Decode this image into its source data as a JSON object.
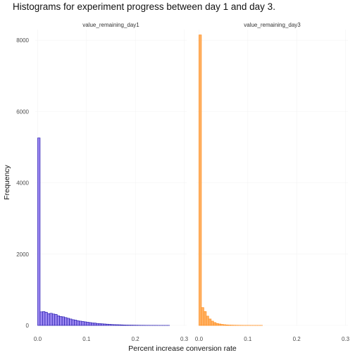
{
  "chart_data": {
    "type": "bar",
    "title": "Histograms for experiment progress between day 1 and day 3.",
    "xlabel": "Percent increase conversion rate",
    "ylabel": "Frequency",
    "xlim": [
      -0.005,
      0.305
    ],
    "ylim": [
      0,
      8300
    ],
    "x_ticks": [
      0.0,
      0.1,
      0.2,
      0.3
    ],
    "x_tick_labels": [
      "0.0",
      "0.1",
      "0.2",
      "0.3"
    ],
    "y_ticks": [
      0,
      2000,
      4000,
      6000,
      8000
    ],
    "y_tick_labels": [
      "0",
      "2000",
      "4000",
      "6000",
      "8000"
    ],
    "bin_width": 0.005,
    "grid": true,
    "facets": [
      {
        "name": "value_remaining_day1",
        "fill": "#9b87f0",
        "stroke": "#2a1fb0",
        "bin_starts": [
          0.0,
          0.005,
          0.01,
          0.015,
          0.02,
          0.025,
          0.03,
          0.035,
          0.04,
          0.045,
          0.05,
          0.055,
          0.06,
          0.065,
          0.07,
          0.075,
          0.08,
          0.085,
          0.09,
          0.095,
          0.1,
          0.105,
          0.11,
          0.115,
          0.12,
          0.125,
          0.13,
          0.135,
          0.14,
          0.145,
          0.15,
          0.155,
          0.16,
          0.165,
          0.17,
          0.175,
          0.18,
          0.185,
          0.19,
          0.195,
          0.2,
          0.205,
          0.21,
          0.215,
          0.22,
          0.225,
          0.23,
          0.235,
          0.24,
          0.245,
          0.25,
          0.255,
          0.26,
          0.265,
          0.27,
          0.275,
          0.28,
          0.285,
          0.29,
          0.295
        ],
        "counts": [
          5260,
          380,
          390,
          370,
          330,
          340,
          320,
          310,
          270,
          250,
          240,
          220,
          200,
          180,
          160,
          150,
          130,
          120,
          110,
          100,
          90,
          80,
          70,
          65,
          55,
          50,
          45,
          40,
          35,
          30,
          25,
          22,
          20,
          18,
          15,
          12,
          10,
          9,
          8,
          7,
          6,
          5,
          4,
          4,
          3,
          3,
          2,
          2,
          2,
          1,
          1,
          1,
          1,
          1,
          0,
          0,
          0,
          0,
          0,
          0
        ]
      },
      {
        "name": "value_remaining_day3",
        "fill": "#ffb266",
        "stroke": "#ff8c1a",
        "bin_starts": [
          0.0,
          0.005,
          0.01,
          0.015,
          0.02,
          0.025,
          0.03,
          0.035,
          0.04,
          0.045,
          0.05,
          0.055,
          0.06,
          0.065,
          0.07,
          0.075,
          0.08,
          0.085,
          0.09,
          0.095,
          0.1,
          0.105,
          0.11,
          0.115,
          0.12,
          0.125,
          0.13,
          0.135,
          0.14,
          0.145,
          0.15,
          0.155,
          0.16,
          0.165,
          0.17,
          0.175,
          0.18,
          0.185,
          0.19,
          0.195,
          0.2,
          0.205,
          0.21,
          0.215,
          0.22,
          0.225,
          0.23,
          0.235,
          0.24,
          0.245,
          0.25,
          0.255,
          0.26,
          0.265,
          0.27,
          0.275,
          0.28,
          0.285,
          0.29,
          0.295
        ],
        "counts": [
          8150,
          500,
          390,
          260,
          180,
          120,
          80,
          55,
          40,
          28,
          20,
          14,
          10,
          8,
          6,
          5,
          4,
          3,
          2,
          2,
          2,
          1,
          1,
          1,
          1,
          1,
          0,
          0,
          0,
          0,
          0,
          0,
          0,
          0,
          0,
          0,
          0,
          0,
          0,
          0,
          0,
          0,
          0,
          0,
          0,
          0,
          0,
          0,
          0,
          0,
          0,
          0,
          0,
          0,
          0,
          0,
          0,
          0,
          0,
          0
        ]
      }
    ]
  }
}
